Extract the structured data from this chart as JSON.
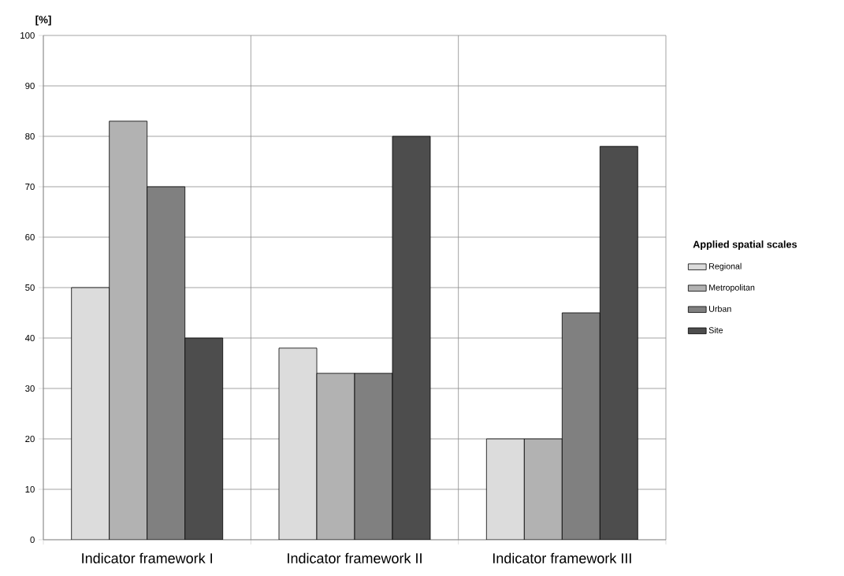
{
  "chart_data": {
    "type": "bar",
    "ylabel": "[%]",
    "legend_title": "Applied spatial scales",
    "categories": [
      "Indicator framework I",
      "Indicator framework II",
      "Indicator framework III"
    ],
    "series": [
      {
        "name": "Regional",
        "color": "#dcdcdc",
        "values": [
          50,
          38,
          20
        ]
      },
      {
        "name": "Metropolitan",
        "color": "#b2b2b2",
        "values": [
          83,
          33,
          20
        ]
      },
      {
        "name": "Urban",
        "color": "#808080",
        "values": [
          70,
          33,
          45
        ]
      },
      {
        "name": "Site",
        "color": "#4d4d4d",
        "values": [
          40,
          80,
          78
        ]
      }
    ],
    "ylim": [
      0,
      100
    ],
    "yticks": [
      0,
      10,
      20,
      30,
      40,
      50,
      60,
      70,
      80,
      90,
      100
    ],
    "grid": true,
    "legend": "right"
  }
}
